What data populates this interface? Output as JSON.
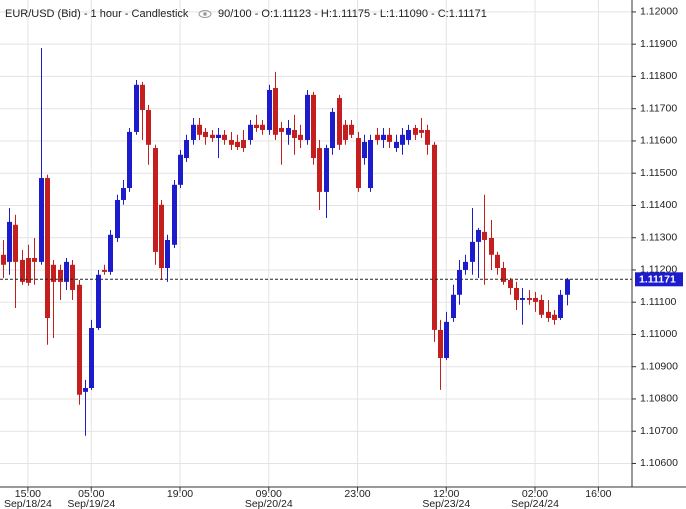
{
  "chart_data": {
    "type": "candlestick",
    "title": "EUR/USD (Bid) - 1 hour - Candlestick",
    "subtitle": "90/100 - O:1.11123 - H:1.11175 - L:1.11090 - C:1.11171",
    "up_color": "#1c1ccd",
    "down_color": "#c41e1e",
    "grid": true,
    "xlim": [
      -0.4,
      99.3
    ],
    "ylim": [
      1.10527,
      1.12037
    ],
    "yticks": [
      {
        "value": 1.12,
        "label": "1.12000"
      },
      {
        "value": 1.119,
        "label": "1.11900"
      },
      {
        "value": 1.118,
        "label": "1.11800"
      },
      {
        "value": 1.117,
        "label": "1.11700"
      },
      {
        "value": 1.116,
        "label": "1.11600"
      },
      {
        "value": 1.115,
        "label": "1.11500"
      },
      {
        "value": 1.114,
        "label": "1.11400"
      },
      {
        "value": 1.113,
        "label": "1.11300"
      },
      {
        "value": 1.112,
        "label": "1.11200"
      },
      {
        "value": 1.111,
        "label": "1.11100"
      },
      {
        "value": 1.11,
        "label": "1.11000"
      },
      {
        "value": 1.109,
        "label": "1.10900"
      },
      {
        "value": 1.108,
        "label": "1.10800"
      },
      {
        "value": 1.107,
        "label": "1.10700"
      },
      {
        "value": 1.106,
        "label": "1.10600"
      }
    ],
    "xticks": [
      {
        "value": 4,
        "label": "15:00"
      },
      {
        "value": 14,
        "label": "05:00"
      },
      {
        "value": 28,
        "label": "19:00"
      },
      {
        "value": 42,
        "label": "09:00"
      },
      {
        "value": 56,
        "label": "23:00"
      },
      {
        "value": 70,
        "label": "12:00"
      },
      {
        "value": 84,
        "label": "02:00"
      },
      {
        "value": 94,
        "label": "16:00"
      }
    ],
    "xdates": [
      {
        "value": 4,
        "label": "Sep/18/24"
      },
      {
        "value": 14,
        "label": "Sep/19/24"
      },
      {
        "value": 42,
        "label": "Sep/20/24"
      },
      {
        "value": 70,
        "label": "Sep/23/24"
      },
      {
        "value": 84,
        "label": "Sep/24/24"
      }
    ],
    "last_price": {
      "value": 1.11171,
      "label": "1.11171"
    },
    "open": [
      1.11247,
      1.11225,
      1.1134,
      1.11231,
      1.11237,
      1.11237,
      1.11225,
      1.11485,
      1.11216,
      1.112,
      1.11163,
      1.11216,
      1.11154,
      1.10822,
      1.10834,
      1.1102,
      1.112,
      1.11194,
      1.11299,
      1.11417,
      1.11454,
      1.11628,
      1.11774,
      1.11696,
      1.11578,
      1.11402,
      1.11206,
      1.11278,
      1.11464,
      1.11547,
      1.11603,
      1.1165,
      1.11628,
      1.11619,
      1.11609,
      1.11619,
      1.11603,
      1.11597,
      1.11603,
      1.11603,
      1.1165,
      1.1165,
      1.11634,
      1.11764,
      1.1164,
      1.11619,
      1.11634,
      1.11619,
      1.11603,
      1.11743,
      1.11578,
      1.11442,
      1.11578,
      1.11733,
      1.1165,
      1.1165,
      1.11609,
      1.11547,
      1.11454,
      1.11619,
      1.11603,
      1.11619,
      1.11578,
      1.11588,
      1.11603,
      1.1164,
      1.11634,
      1.11634,
      1.11588,
      1.11014,
      1.10927,
      1.11051,
      1.11123,
      1.112,
      1.11225,
      1.11287,
      1.11318,
      1.11299,
      1.11247,
      1.11206,
      1.11169,
      1.11144,
      1.11107,
      1.11113,
      1.11113,
      1.11107,
      1.1107,
      1.11061,
      1.11051,
      1.11123
    ],
    "high": [
      1.11293,
      1.11392,
      1.11371,
      1.11262,
      1.11278,
      1.11299,
      1.11888,
      1.11495,
      1.11231,
      1.11216,
      1.11237,
      1.11231,
      1.11169,
      1.10859,
      1.11045,
      1.112,
      1.11216,
      1.11324,
      1.11433,
      1.11479,
      1.1164,
      1.11789,
      1.11783,
      1.11712,
      1.11588,
      1.11417,
      1.11309,
      1.11479,
      1.11572,
      1.11619,
      1.11671,
      1.11671,
      1.1164,
      1.11634,
      1.1164,
      1.11634,
      1.11628,
      1.11619,
      1.11634,
      1.11665,
      1.11681,
      1.11665,
      1.11774,
      1.11814,
      1.11659,
      1.11665,
      1.11681,
      1.1165,
      1.11758,
      1.11752,
      1.11603,
      1.11588,
      1.11702,
      1.11743,
      1.11665,
      1.11665,
      1.11628,
      1.11619,
      1.11619,
      1.1164,
      1.1164,
      1.1164,
      1.11619,
      1.1164,
      1.1165,
      1.1165,
      1.11671,
      1.1165,
      1.11597,
      1.11045,
      1.1107,
      1.11154,
      1.11231,
      1.11247,
      1.11392,
      1.1133,
      1.11433,
      1.11355,
      1.11256,
      1.11225,
      1.11175,
      1.11163,
      1.11144,
      1.11138,
      1.11132,
      1.11123,
      1.11107,
      1.11076,
      1.11138,
      1.11175
    ],
    "low": [
      1.11175,
      1.11185,
      1.11082,
      1.11154,
      1.11151,
      1.11154,
      1.11216,
      1.10968,
      1.10989,
      1.11107,
      1.11138,
      1.11107,
      1.10782,
      1.10686,
      1.10828,
      1.11014,
      1.11185,
      1.11185,
      1.11287,
      1.11402,
      1.11442,
      1.11619,
      1.11603,
      1.11526,
      1.11216,
      1.11169,
      1.11163,
      1.11268,
      1.11454,
      1.11535,
      1.11588,
      1.11603,
      1.11588,
      1.11597,
      1.11547,
      1.11588,
      1.11572,
      1.11572,
      1.11566,
      1.11588,
      1.11628,
      1.11619,
      1.11619,
      1.11603,
      1.11526,
      1.11588,
      1.11557,
      1.11578,
      1.11588,
      1.11526,
      1.11386,
      1.11361,
      1.11557,
      1.11572,
      1.11588,
      1.11609,
      1.11442,
      1.11526,
      1.11442,
      1.11588,
      1.11578,
      1.11578,
      1.11566,
      1.11557,
      1.11588,
      1.11603,
      1.11609,
      1.11557,
      1.10977,
      1.10828,
      1.10921,
      1.11039,
      1.11092,
      1.11185,
      1.11185,
      1.11175,
      1.11154,
      1.112,
      1.11185,
      1.11154,
      1.11123,
      1.11076,
      1.1103,
      1.11092,
      1.1107,
      1.11051,
      1.11039,
      1.1103,
      1.11045,
      1.1109
    ],
    "close": [
      1.11216,
      1.11349,
      1.11225,
      1.11163,
      1.1116,
      1.11225,
      1.11485,
      1.11051,
      1.11163,
      1.11163,
      1.11225,
      1.11138,
      1.10813,
      1.10834,
      1.1102,
      1.11185,
      1.11194,
      1.11309,
      1.11417,
      1.11454,
      1.11628,
      1.11774,
      1.11696,
      1.11588,
      1.11256,
      1.11206,
      1.11293,
      1.11464,
      1.11557,
      1.11603,
      1.1165,
      1.11619,
      1.11612,
      1.11609,
      1.11619,
      1.11603,
      1.11588,
      1.11581,
      1.11578,
      1.1165,
      1.1164,
      1.11634,
      1.11758,
      1.11619,
      1.11628,
      1.1164,
      1.11609,
      1.11603,
      1.11743,
      1.11547,
      1.11442,
      1.11578,
      1.1169,
      1.11588,
      1.11603,
      1.11619,
      1.11454,
      1.11597,
      1.11603,
      1.11603,
      1.11619,
      1.11597,
      1.11597,
      1.11619,
      1.11634,
      1.11619,
      1.11625,
      1.11588,
      1.11014,
      1.10927,
      1.11039,
      1.11123,
      1.112,
      1.11225,
      1.11287,
      1.11324,
      1.11293,
      1.11247,
      1.11206,
      1.11163,
      1.11144,
      1.11107,
      1.11113,
      1.11107,
      1.11101,
      1.11061,
      1.11051,
      1.11045,
      1.11123,
      1.11171
    ]
  }
}
